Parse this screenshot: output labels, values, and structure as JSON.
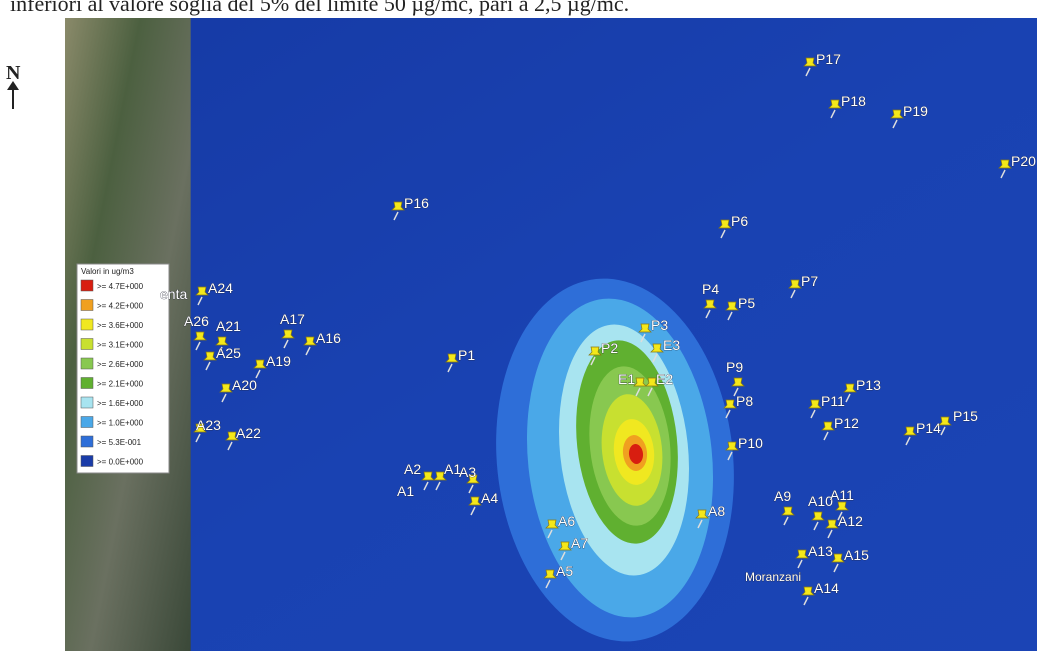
{
  "caption": "inferiori al valore soglia del 5% del limite 50 µg/mc, pari a 2,5 µg/mc.",
  "north": "N",
  "legend": {
    "title": "Valori in ug/m3",
    "items": [
      {
        "label": ">= 4.7E+000",
        "color": "#d81e10"
      },
      {
        "label": ">= 4.2E+000",
        "color": "#f0a020"
      },
      {
        "label": ">= 3.6E+000",
        "color": "#f0e820"
      },
      {
        "label": ">= 3.1E+000",
        "color": "#c8e030"
      },
      {
        "label": ">= 2.6E+000",
        "color": "#88c850"
      },
      {
        "label": ">= 2.1E+000",
        "color": "#60b030"
      },
      {
        "label": ">= 1.6E+000",
        "color": "#a8e4f0"
      },
      {
        "label": ">= 1.0E+000",
        "color": "#4aa8e8"
      },
      {
        "label": ">= 5.3E-001",
        "color": "#2e6ed8"
      },
      {
        "label": ">= 0.0E+000",
        "color": "#1a3ca8"
      }
    ]
  },
  "markers": [
    "P17",
    "P18",
    "P19",
    "P20",
    "P16",
    "P6",
    "P7",
    "P4",
    "P5",
    "P3",
    "P2",
    "E3",
    "E1",
    "E2",
    "P9",
    "P8",
    "P1",
    "P13",
    "P11",
    "P12",
    "P14",
    "P15",
    "P10",
    "A24",
    "A26",
    "A21",
    "A17",
    "A16",
    "A25",
    "A19",
    "A20",
    "A23",
    "A22",
    "A2",
    "A1",
    "A3",
    "A4",
    "A6",
    "A7",
    "A5",
    "A8",
    "A9",
    "A10",
    "A11",
    "A12",
    "A13",
    "A15",
    "A14"
  ],
  "place_labels": [
    "enta",
    "A1",
    "Moranzani"
  ]
}
